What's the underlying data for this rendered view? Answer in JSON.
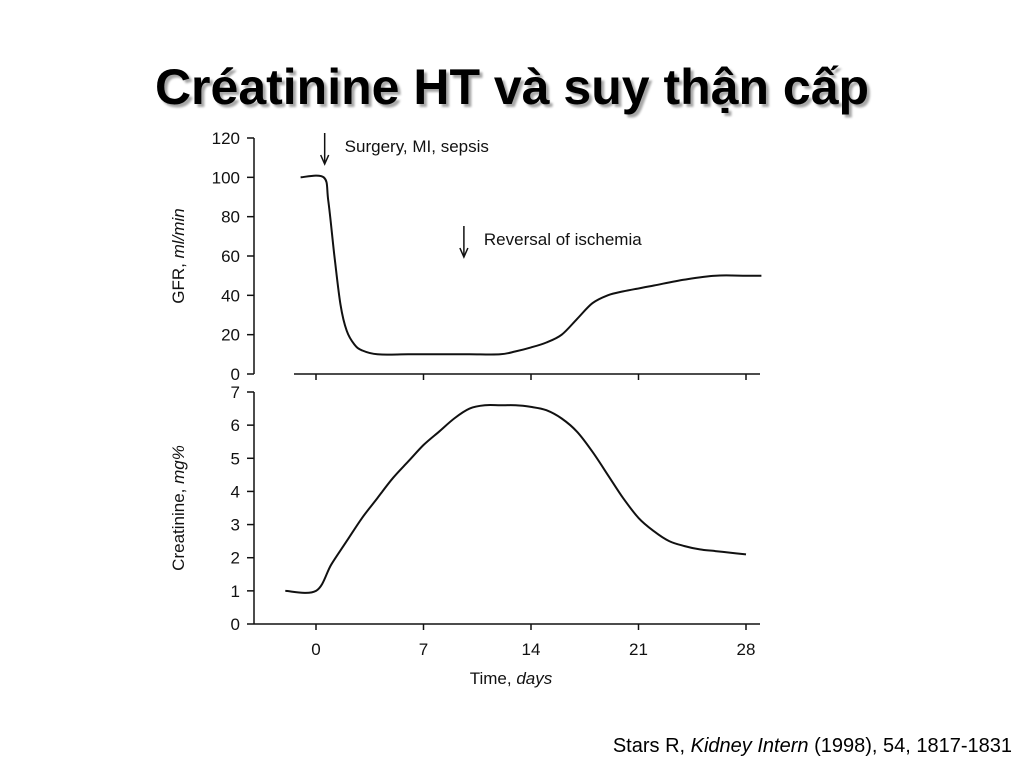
{
  "slide": {
    "title": "Créatinine HT và suy thận cấp"
  },
  "citation": {
    "author": "Stars R,",
    "journal": "Kidney Intern",
    "details": "(1998), 54, 1817-1831"
  },
  "chart_data": [
    {
      "type": "line",
      "title": "",
      "xlabel": "",
      "ylabel": "GFR, ml/min",
      "ylabel_parts": [
        "GFR, ",
        "ml/min"
      ],
      "xlim": [
        -2,
        29
      ],
      "ylim": [
        0,
        120
      ],
      "yticks": [
        0,
        20,
        40,
        60,
        80,
        100,
        120
      ],
      "grid": false,
      "series": [
        {
          "x": [
            -1,
            0.5,
            0.8,
            1.2,
            1.6,
            2,
            2.5,
            3,
            4,
            6,
            8,
            10,
            12,
            13,
            14,
            15,
            16,
            17,
            18,
            19,
            20,
            22,
            24,
            26,
            28,
            29
          ],
          "y": [
            100,
            100,
            88,
            60,
            35,
            22,
            15,
            12,
            10,
            10,
            10,
            10,
            10,
            11.5,
            13.5,
            16,
            20,
            28,
            36,
            40,
            42,
            45,
            48,
            50,
            50,
            50
          ]
        }
      ],
      "annotations": [
        {
          "text": "Surgery, MI, sepsis",
          "x": 0.5
        },
        {
          "text": "Reversal of ischemia",
          "x": 9.5
        }
      ]
    },
    {
      "type": "line",
      "title": "",
      "xlabel": "Time, days",
      "xlabel_parts": [
        "Time, ",
        "days"
      ],
      "ylabel": "Creatinine, mg%",
      "ylabel_parts": [
        "Creatinine, ",
        "mg%"
      ],
      "xlim": [
        -2,
        29
      ],
      "ylim": [
        0,
        7
      ],
      "xticks": [
        0,
        7,
        14,
        21,
        28
      ],
      "yticks": [
        0,
        1,
        2,
        3,
        4,
        5,
        6,
        7
      ],
      "grid": false,
      "series": [
        {
          "x": [
            -2,
            0,
            1,
            2,
            3,
            4,
            5,
            6,
            7,
            8,
            9,
            10,
            11,
            12,
            13,
            14,
            15,
            16,
            17,
            18,
            19,
            20,
            21,
            22,
            23,
            24,
            25,
            26,
            27,
            28
          ],
          "y": [
            1,
            1,
            1.8,
            2.5,
            3.2,
            3.8,
            4.4,
            4.9,
            5.4,
            5.8,
            6.2,
            6.5,
            6.6,
            6.6,
            6.6,
            6.55,
            6.45,
            6.2,
            5.8,
            5.2,
            4.5,
            3.8,
            3.2,
            2.8,
            2.5,
            2.35,
            2.25,
            2.2,
            2.15,
            2.1
          ]
        }
      ]
    }
  ]
}
